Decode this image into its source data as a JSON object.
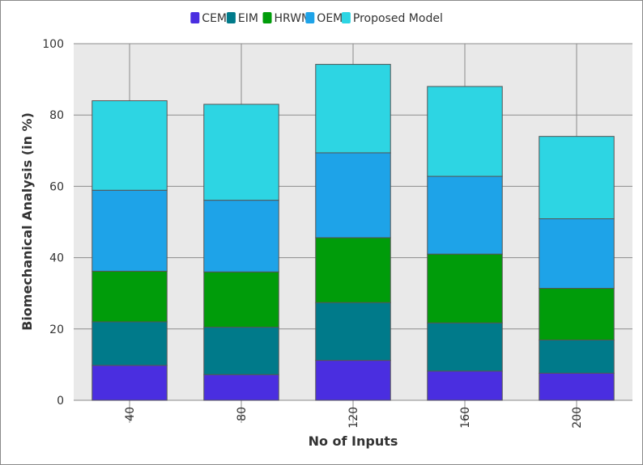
{
  "chart_data": {
    "type": "bar",
    "stacked": true,
    "title": "",
    "xlabel": "No of Inputs",
    "ylabel": "Biomechanical Analysis (in %)",
    "categories": [
      "40",
      "80",
      "120",
      "160",
      "200"
    ],
    "ylim": [
      0,
      100
    ],
    "yticks": [
      0,
      20,
      40,
      60,
      80,
      100
    ],
    "grid": true,
    "legend_position": "top",
    "series": [
      {
        "name": "CEM",
        "color": "#4a2ee0",
        "values": [
          9.8,
          7.2,
          11.2,
          8.2,
          7.6
        ]
      },
      {
        "name": "EIM",
        "color": "#007a8a",
        "values": [
          12.2,
          13.3,
          16.2,
          13.5,
          9.3
        ]
      },
      {
        "name": "HRWM",
        "color": "#009c0a",
        "values": [
          14.2,
          15.5,
          18.2,
          19.3,
          14.5
        ]
      },
      {
        "name": "OEM",
        "color": "#1ea3e8",
        "values": [
          22.7,
          20.1,
          23.8,
          21.8,
          19.5
        ]
      },
      {
        "name": "Proposed Model",
        "color": "#2dd5e3",
        "values": [
          25.1,
          26.9,
          24.8,
          25.2,
          23.1
        ]
      }
    ]
  }
}
